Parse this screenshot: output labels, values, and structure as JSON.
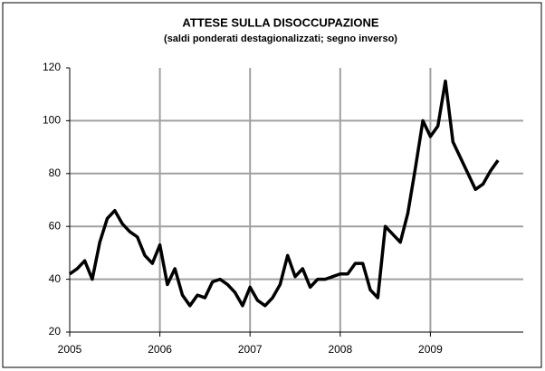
{
  "chart_data": {
    "type": "line",
    "title": "ATTESE SULLA DISOCCUPAZIONE",
    "subtitle": "(saldi ponderati destagionalizzati;  segno inverso)",
    "categories": [
      "2005",
      null,
      null,
      null,
      null,
      null,
      null,
      null,
      null,
      null,
      null,
      null,
      "2006",
      null,
      null,
      null,
      null,
      null,
      null,
      null,
      null,
      null,
      null,
      null,
      "2007",
      null,
      null,
      null,
      null,
      null,
      null,
      null,
      null,
      null,
      null,
      null,
      "2008",
      null,
      null,
      null,
      null,
      null,
      null,
      null,
      null,
      null,
      null,
      null,
      "2009",
      null,
      null,
      null,
      null,
      null,
      null,
      null,
      null,
      null
    ],
    "series": [
      {
        "color": "#000000",
        "values": [
          42,
          44,
          47,
          40,
          54,
          63,
          66,
          61,
          58,
          56,
          49,
          46,
          53,
          38,
          44,
          34,
          30,
          34,
          33,
          39,
          40,
          38,
          35,
          30,
          37,
          32,
          30,
          33,
          38,
          49,
          41,
          44,
          37,
          40,
          40,
          41,
          42,
          42,
          46,
          46,
          36,
          33,
          60,
          57,
          54,
          65,
          82,
          100,
          94,
          98,
          115,
          92,
          86,
          80,
          74,
          76,
          81,
          85
        ]
      }
    ],
    "ylim": [
      20,
      120
    ],
    "yticks": [
      20,
      40,
      60,
      80,
      100,
      120
    ],
    "grid": true
  }
}
